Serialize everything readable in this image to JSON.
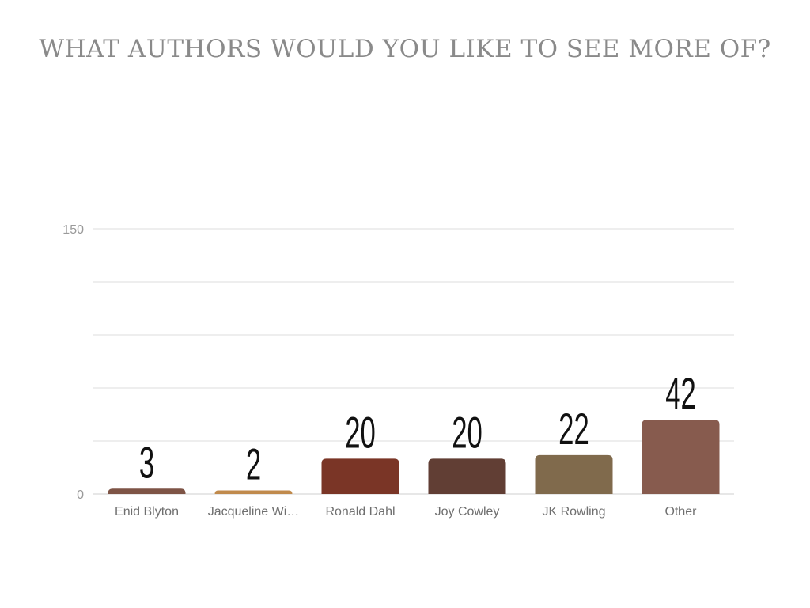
{
  "title": "WHAT AUTHORS WOULD YOU LIKE TO SEE MORE OF?",
  "chart_data": {
    "type": "bar",
    "title": "WHAT AUTHORS WOULD YOU LIKE TO SEE MORE OF?",
    "categories": [
      "Enid Blyton",
      "Jacqueline Wi…",
      "Ronald Dahl",
      "Joy Cowley",
      "JK Rowling",
      "Other"
    ],
    "values": [
      3,
      2,
      20,
      20,
      22,
      42
    ],
    "colors": [
      "#7e5446",
      "#c08a4c",
      "#7a3526",
      "#613e34",
      "#806a4c",
      "#875b4e"
    ],
    "ylim": [
      0,
      150
    ],
    "yticks": [
      "0",
      "150"
    ],
    "grid": true,
    "gridlines": 5,
    "xlabel": "",
    "ylabel": ""
  }
}
